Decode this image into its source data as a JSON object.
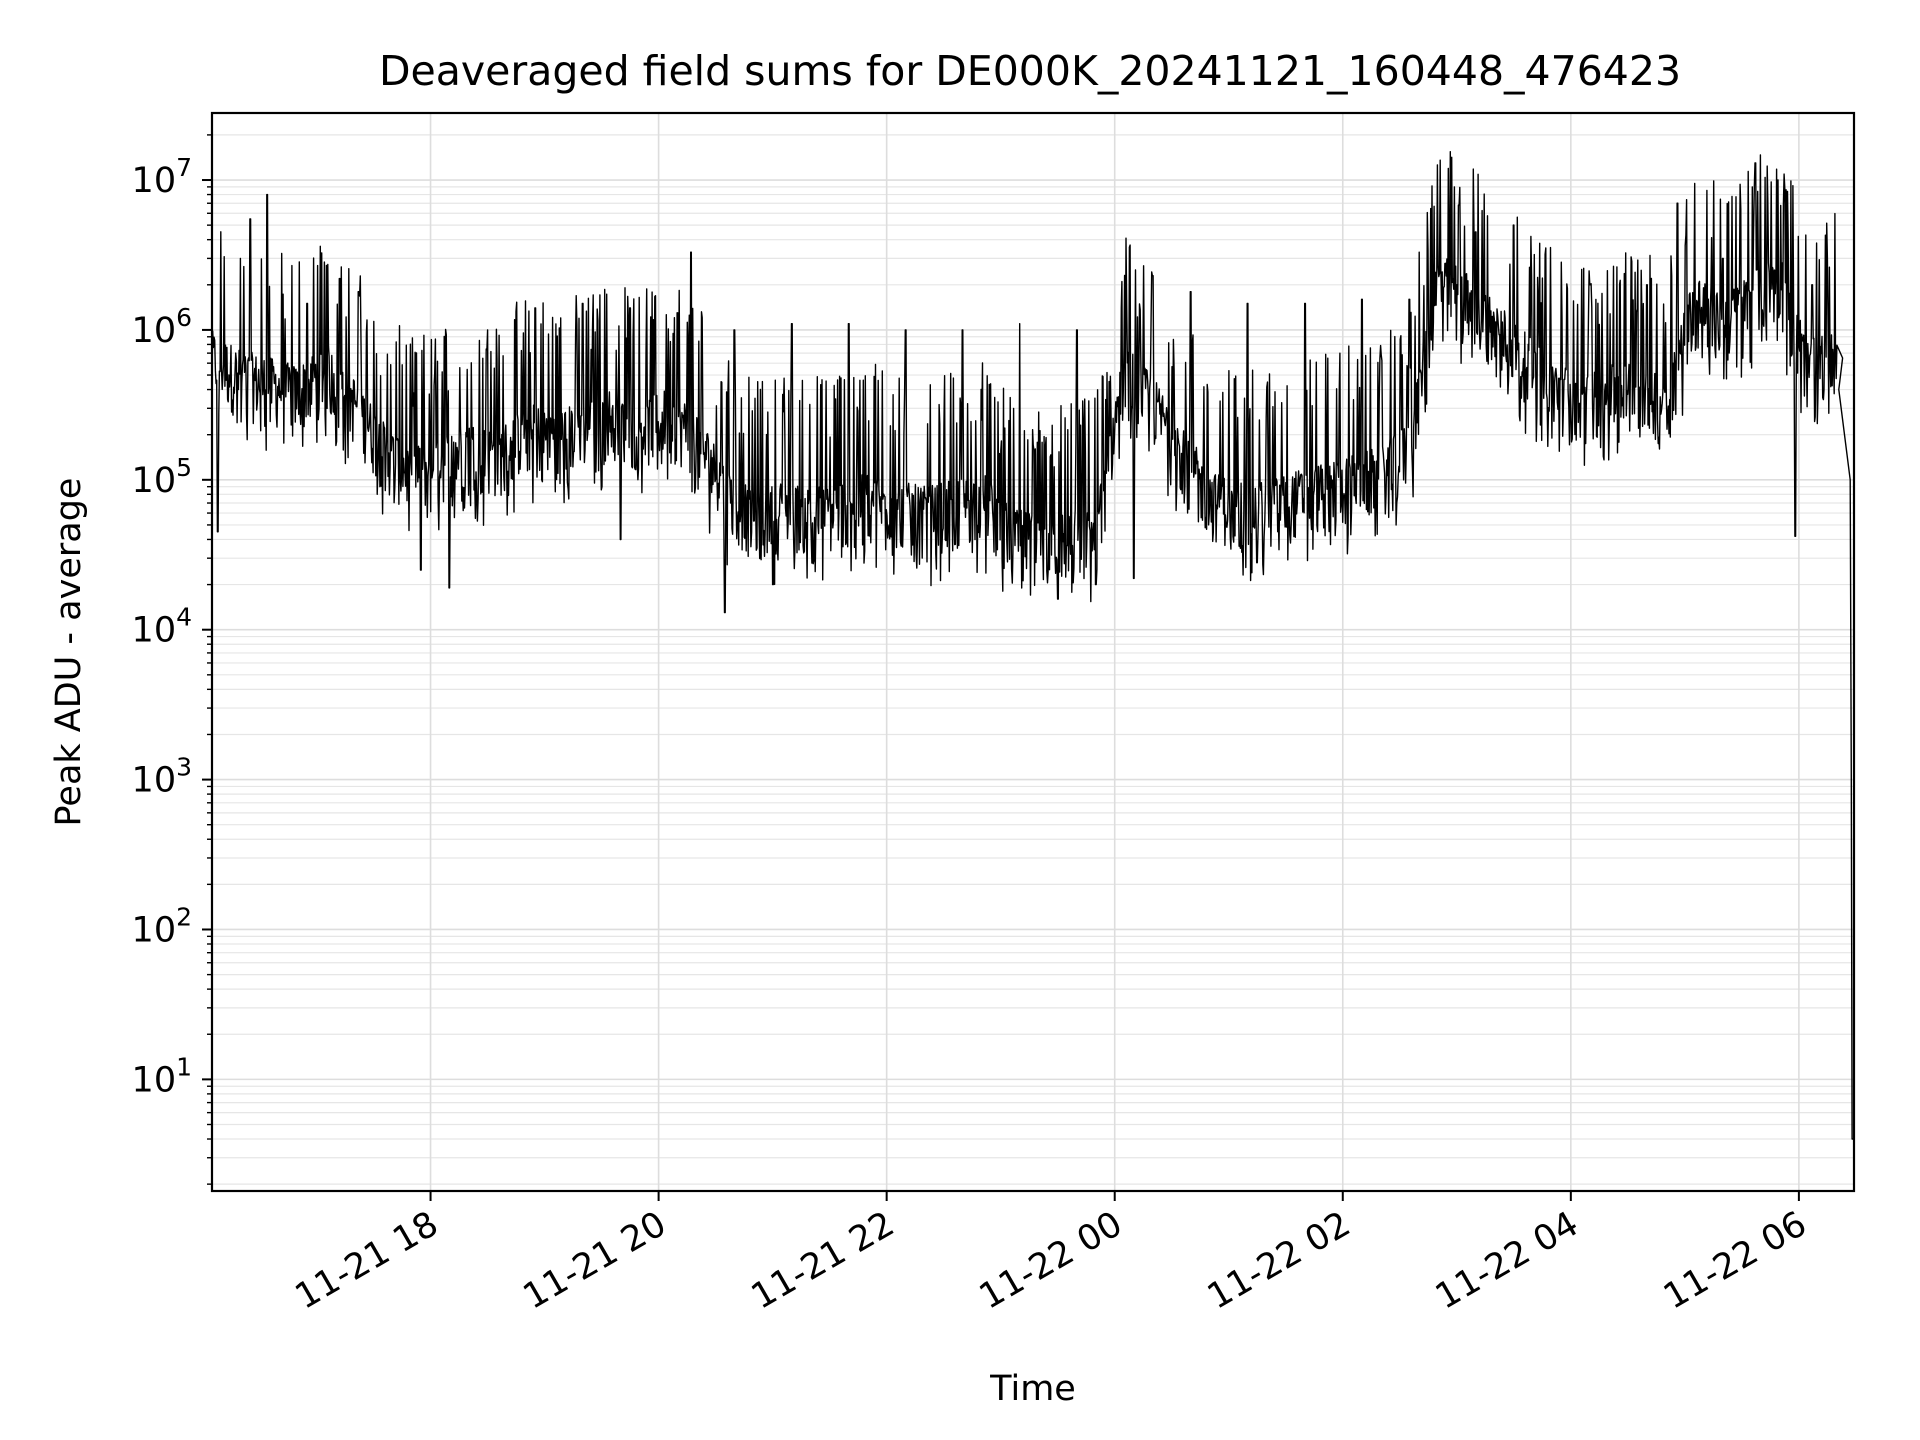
{
  "chart_data": {
    "type": "line",
    "title": "Deaveraged field sums for DE000K_20241121_160448_476423",
    "xlabel": "Time",
    "ylabel": "Peak ADU - average",
    "yscale": "log",
    "ylim": [
      1.8,
      28000000
    ],
    "xlim": [
      "2024-11-21 16:05",
      "2024-11-22 06:29"
    ],
    "grid": true,
    "legend": "none",
    "line_color": "#000000",
    "x_ticks": [
      {
        "value": "2024-11-21 18:00",
        "label": "11-21 18"
      },
      {
        "value": "2024-11-21 20:00",
        "label": "11-21 20"
      },
      {
        "value": "2024-11-21 22:00",
        "label": "11-21 22"
      },
      {
        "value": "2024-11-22 00:00",
        "label": "11-22 00"
      },
      {
        "value": "2024-11-22 02:00",
        "label": "11-22 02"
      },
      {
        "value": "2024-11-22 04:00",
        "label": "11-22 04"
      },
      {
        "value": "2024-11-22 06:00",
        "label": "11-22 06"
      }
    ],
    "y_ticks": [
      {
        "value": 10,
        "base": "10",
        "exp": "1"
      },
      {
        "value": 100,
        "base": "10",
        "exp": "2"
      },
      {
        "value": 1000,
        "base": "10",
        "exp": "3"
      },
      {
        "value": 10000,
        "base": "10",
        "exp": "4"
      },
      {
        "value": 100000,
        "base": "10",
        "exp": "5"
      },
      {
        "value": 1000000,
        "base": "10",
        "exp": "6"
      },
      {
        "value": 10000000,
        "base": "10",
        "exp": "7"
      }
    ],
    "series": [
      {
        "x": [
          "2024-11-21 16:05",
          "2024-11-21 16:20",
          "2024-11-21 16:35",
          "2024-11-21 16:50",
          "2024-11-21 17:05",
          "2024-11-21 17:20",
          "2024-11-21 17:35",
          "2024-11-21 17:50",
          "2024-11-21 18:05",
          "2024-11-21 18:20",
          "2024-11-21 18:35",
          "2024-11-21 18:50",
          "2024-11-21 19:05",
          "2024-11-21 19:20",
          "2024-11-21 19:35",
          "2024-11-21 19:50",
          "2024-11-21 20:05",
          "2024-11-21 20:20",
          "2024-11-21 20:35",
          "2024-11-21 20:50",
          "2024-11-21 21:05",
          "2024-11-21 21:20",
          "2024-11-21 21:35",
          "2024-11-21 21:50",
          "2024-11-21 22:05",
          "2024-11-21 22:20",
          "2024-11-21 22:35",
          "2024-11-21 22:50",
          "2024-11-21 23:05",
          "2024-11-21 23:20",
          "2024-11-21 23:35",
          "2024-11-21 23:50",
          "2024-11-22 00:05",
          "2024-11-22 00:20",
          "2024-11-22 00:35",
          "2024-11-22 00:50",
          "2024-11-22 01:05",
          "2024-11-22 01:20",
          "2024-11-22 01:35",
          "2024-11-22 01:50",
          "2024-11-22 02:05",
          "2024-11-22 02:20",
          "2024-11-22 02:35",
          "2024-11-22 02:50",
          "2024-11-22 03:05",
          "2024-11-22 03:20",
          "2024-11-22 03:35",
          "2024-11-22 03:50",
          "2024-11-22 04:05",
          "2024-11-22 04:20",
          "2024-11-22 04:35",
          "2024-11-22 04:50",
          "2024-11-22 05:05",
          "2024-11-22 05:20",
          "2024-11-22 05:35",
          "2024-11-22 05:50",
          "2024-11-22 06:05",
          "2024-11-22 06:20",
          "2024-11-22 06:27",
          "2024-11-22 06:29"
        ],
        "y": [
          600000,
          450000,
          400000,
          350000,
          500000,
          300000,
          150000,
          100000,
          120000,
          150000,
          130000,
          200000,
          180000,
          200000,
          250000,
          200000,
          250000,
          180000,
          80000,
          50000,
          60000,
          55000,
          60000,
          70000,
          60000,
          55000,
          60000,
          70000,
          40000,
          35000,
          38000,
          40000,
          500000,
          300000,
          150000,
          70000,
          60000,
          60000,
          70000,
          80000,
          90000,
          100000,
          150000,
          2000000,
          1500000,
          1000000,
          600000,
          400000,
          300000,
          350000,
          400000,
          300000,
          1500000,
          1000000,
          1500000,
          2000000,
          500000,
          700000,
          100000,
          4
        ],
        "spikes_high": [
          [
            "2024-11-21 16:25",
            5500000
          ],
          [
            "2024-11-21 16:34",
            8000000
          ],
          [
            "2024-11-21 16:55",
            1500000
          ],
          [
            "2024-11-21 17:12",
            2200000
          ],
          [
            "2024-11-21 17:22",
            1800000
          ],
          [
            "2024-11-21 18:10",
            1200000
          ],
          [
            "2024-11-21 18:30",
            1000000
          ],
          [
            "2024-11-21 18:55",
            1400000
          ],
          [
            "2024-11-21 19:20",
            1500000
          ],
          [
            "2024-11-21 19:45",
            1400000
          ],
          [
            "2024-11-21 20:10",
            1300000
          ],
          [
            "2024-11-21 20:17",
            3300000
          ],
          [
            "2024-11-21 20:40",
            1000000
          ],
          [
            "2024-11-21 21:10",
            1100000
          ],
          [
            "2024-11-21 21:40",
            1100000
          ],
          [
            "2024-11-21 22:10",
            1000000
          ],
          [
            "2024-11-21 22:40",
            1000000
          ],
          [
            "2024-11-21 23:10",
            1100000
          ],
          [
            "2024-11-21 23:40",
            1000000
          ],
          [
            "2024-11-22 00:20",
            2300000
          ],
          [
            "2024-11-22 00:40",
            1800000
          ],
          [
            "2024-11-22 01:10",
            1500000
          ],
          [
            "2024-11-22 01:40",
            1500000
          ],
          [
            "2024-11-22 02:10",
            1600000
          ],
          [
            "2024-11-22 02:35",
            1600000
          ],
          [
            "2024-11-22 03:01",
            6800000
          ],
          [
            "2024-11-22 03:10",
            4500000
          ],
          [
            "2024-11-22 03:30",
            5000000
          ],
          [
            "2024-11-22 04:10",
            2000000
          ],
          [
            "2024-11-22 04:40",
            2000000
          ],
          [
            "2024-11-22 04:56",
            7000000
          ],
          [
            "2024-11-22 05:20",
            3000000
          ],
          [
            "2024-11-22 05:37",
            13000000
          ],
          [
            "2024-11-22 05:49",
            10000000
          ],
          [
            "2024-11-22 06:07",
            2000000
          ]
        ],
        "spikes_low": [
          [
            "2024-11-21 16:08",
            45000
          ],
          [
            "2024-11-21 17:55",
            25000
          ],
          [
            "2024-11-21 18:10",
            19000
          ],
          [
            "2024-11-21 19:40",
            40000
          ],
          [
            "2024-11-21 20:35",
            13000
          ],
          [
            "2024-11-21 21:00",
            20000
          ],
          [
            "2024-11-21 23:30",
            16000
          ],
          [
            "2024-11-21 23:50",
            20000
          ],
          [
            "2024-11-22 00:10",
            22000
          ],
          [
            "2024-11-22 01:15",
            28000
          ],
          [
            "2024-11-22 05:58",
            42000
          ]
        ]
      }
    ]
  }
}
